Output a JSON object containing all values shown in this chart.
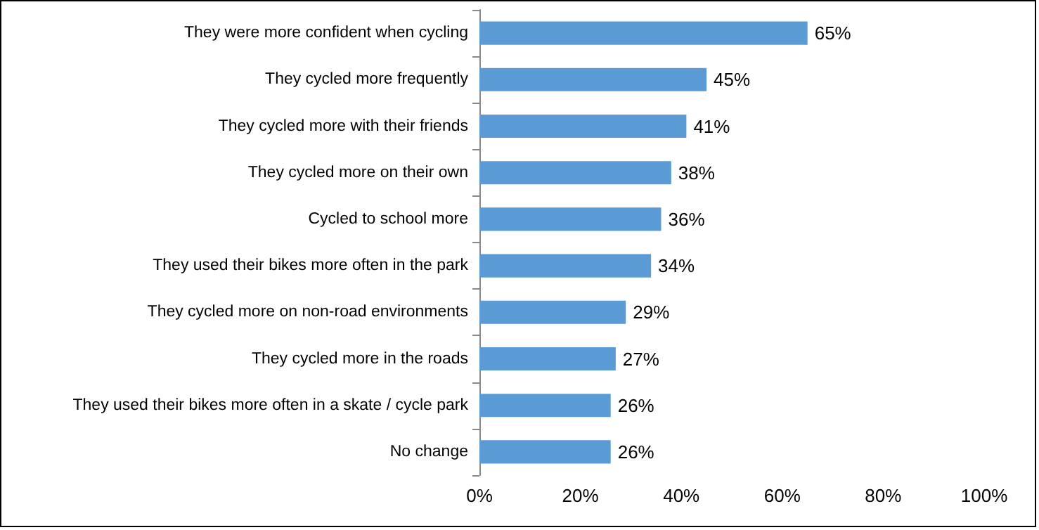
{
  "chart_data": {
    "type": "bar",
    "orientation": "horizontal",
    "categories": [
      "They were more confident when cycling",
      "They cycled more frequently",
      "They cycled more with their friends",
      "They cycled more on their own",
      "Cycled to school more",
      "They used their bikes more often in the park",
      "They cycled more on non-road environments",
      "They cycled more in the roads",
      "They used their bikes more often in a skate / cycle park",
      "No change"
    ],
    "values": [
      65,
      45,
      41,
      38,
      36,
      34,
      29,
      27,
      26,
      26
    ],
    "value_labels": [
      "65%",
      "45%",
      "41%",
      "38%",
      "36%",
      "34%",
      "29%",
      "27%",
      "26%",
      "26%"
    ],
    "color": "#5b9bd5",
    "xlim": [
      0,
      100
    ],
    "xticks": [
      {
        "value": 0,
        "label": "0%"
      },
      {
        "value": 20,
        "label": "20%"
      },
      {
        "value": 40,
        "label": "40%"
      },
      {
        "value": 60,
        "label": "60%"
      },
      {
        "value": 80,
        "label": "80%"
      },
      {
        "value": 100,
        "label": "100%"
      }
    ],
    "grid": false
  }
}
